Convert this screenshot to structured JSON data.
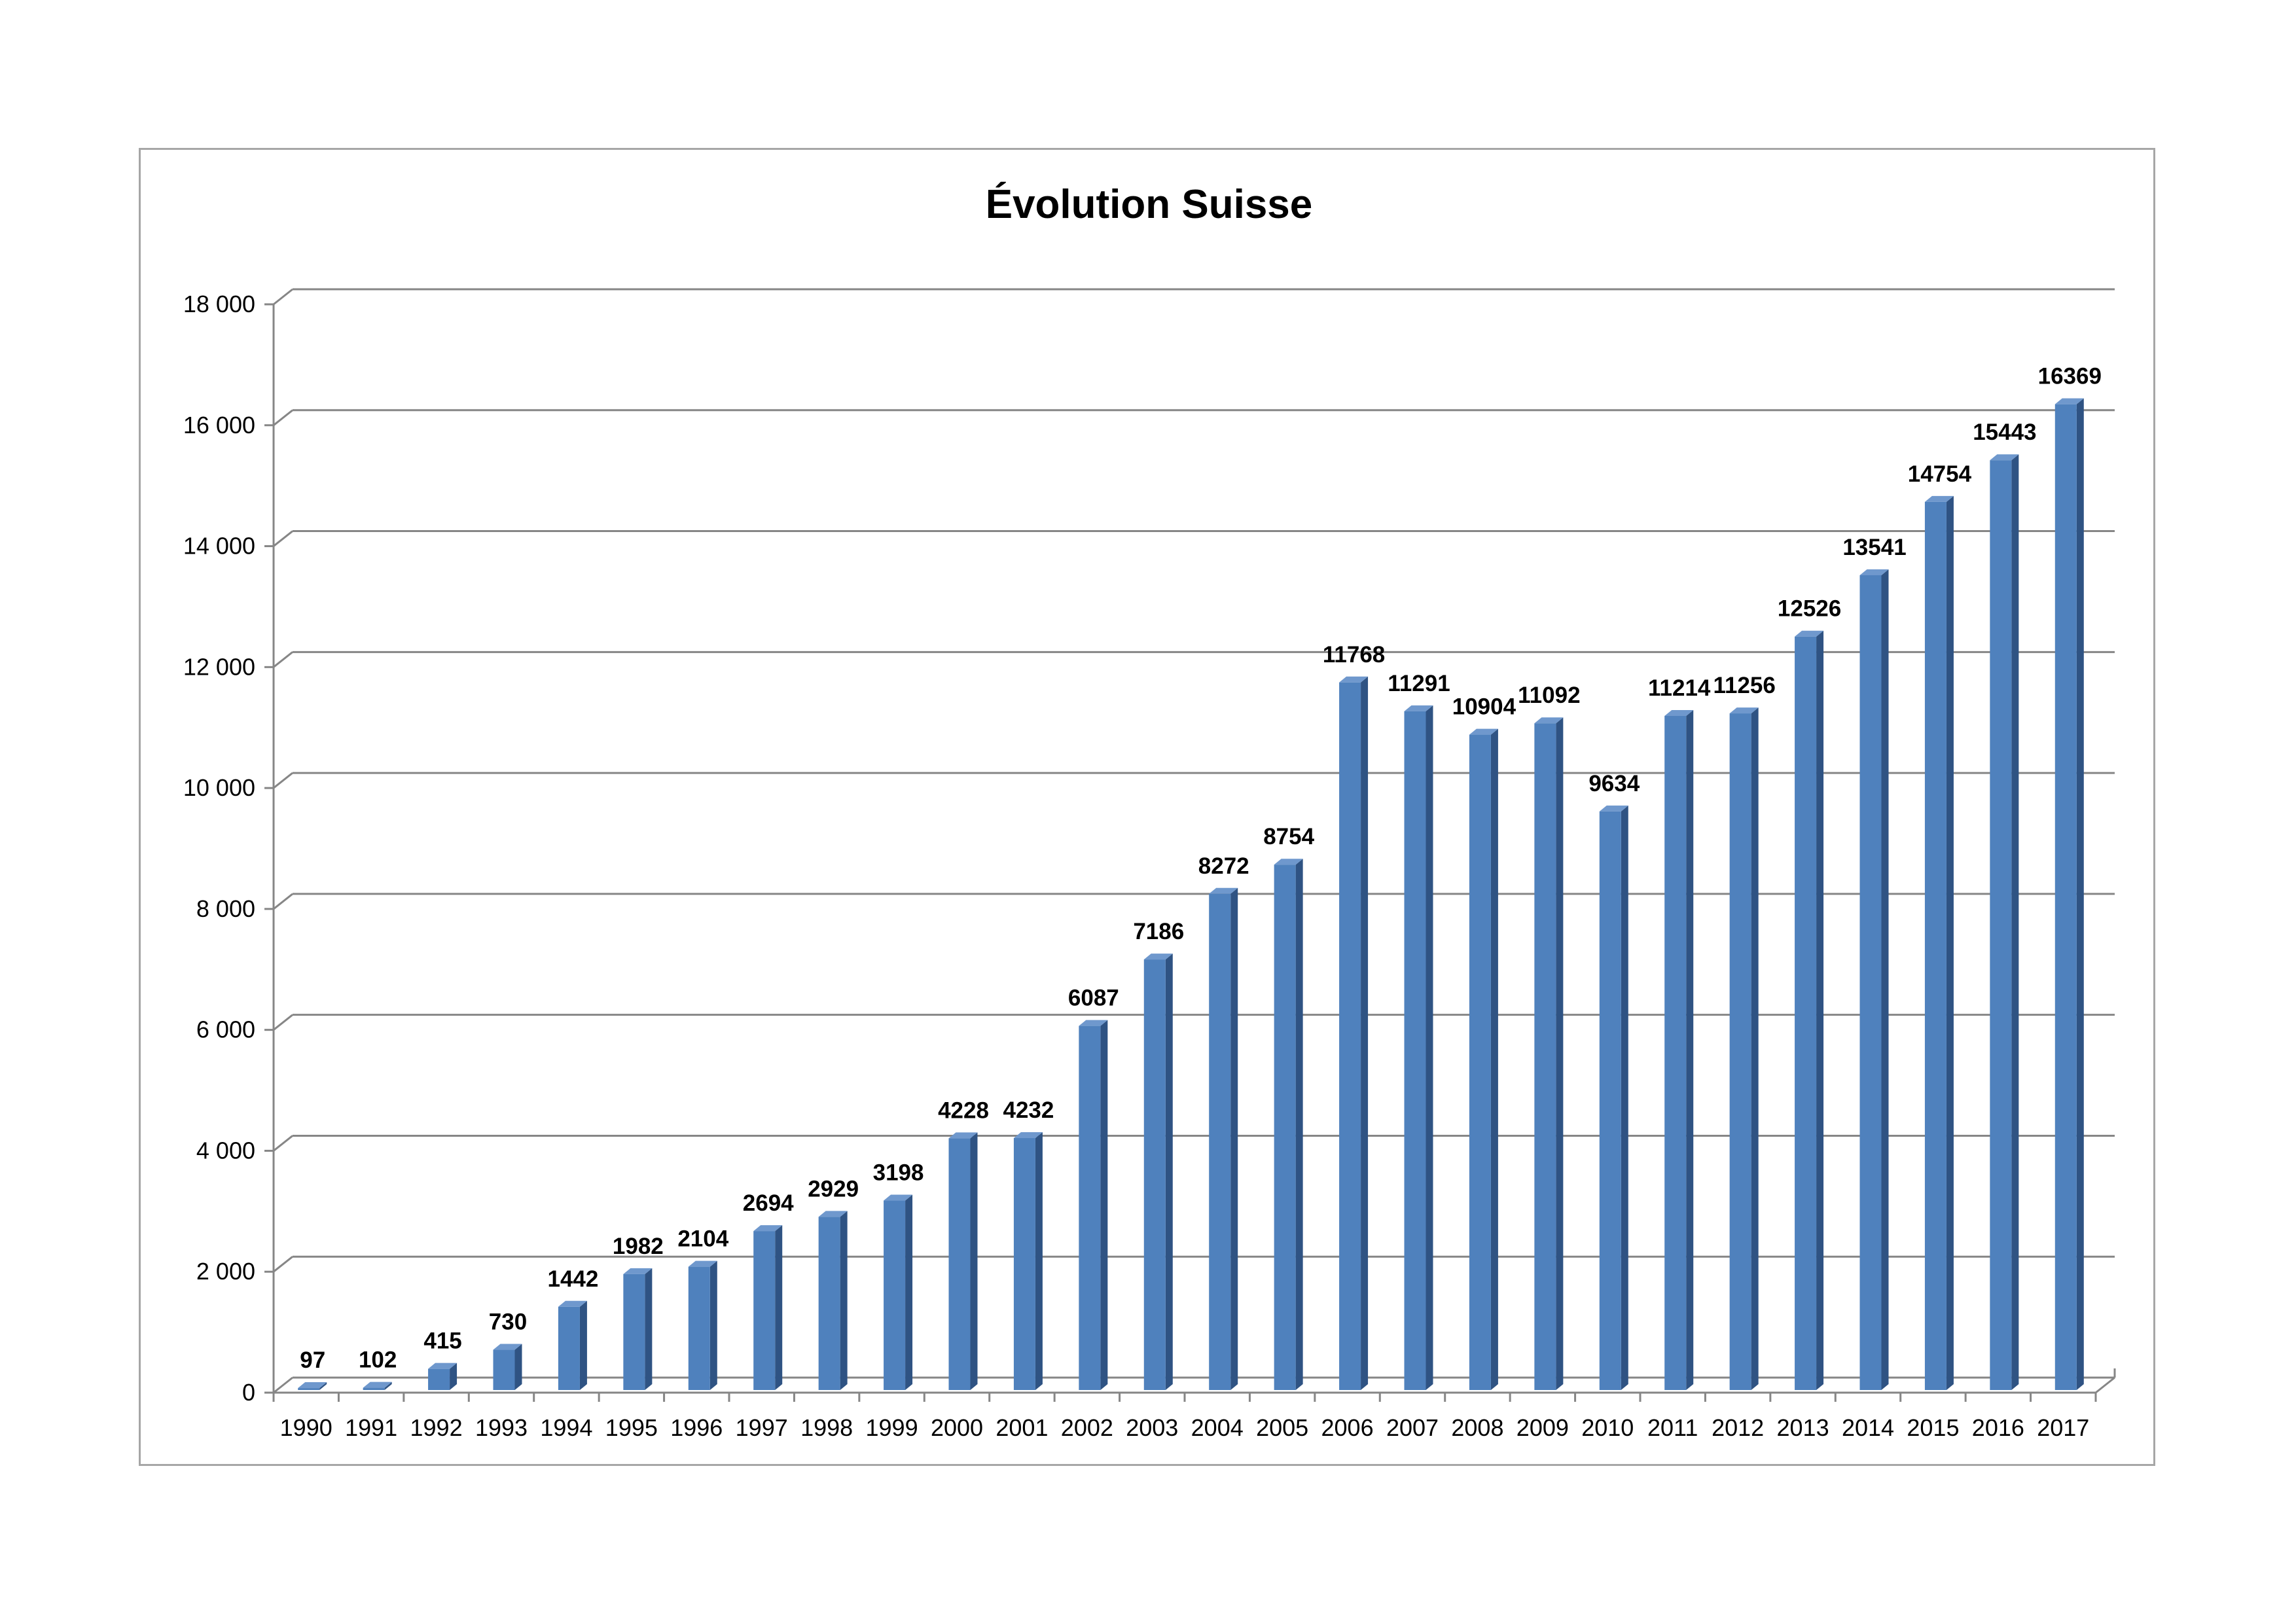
{
  "chart_data": {
    "type": "bar",
    "title": "Évolution Suisse",
    "xlabel": "",
    "ylabel": "",
    "categories": [
      "1990",
      "1991",
      "1992",
      "1993",
      "1994",
      "1995",
      "1996",
      "1997",
      "1998",
      "1999",
      "2000",
      "2001",
      "2002",
      "2003",
      "2004",
      "2005",
      "2006",
      "2007",
      "2008",
      "2009",
      "2010",
      "2011",
      "2012",
      "2013",
      "2014",
      "2015",
      "2016",
      "2017"
    ],
    "series": [
      {
        "values": [
          97,
          102,
          415,
          730,
          1442,
          1982,
          2104,
          2694,
          2929,
          3198,
          4228,
          4232,
          6087,
          7186,
          8272,
          8754,
          11768,
          11291,
          10904,
          11092,
          9634,
          11214,
          11256,
          12526,
          13541,
          14754,
          15443,
          16369
        ]
      }
    ],
    "ylim": [
      0,
      18000
    ],
    "yticks": [
      0,
      2000,
      4000,
      6000,
      8000,
      10000,
      12000,
      14000,
      16000,
      18000
    ],
    "ytick_labels": [
      "0",
      "2 000",
      "4 000",
      "6 000",
      "8 000",
      "10 000",
      "12 000",
      "14 000",
      "16 000",
      "18 000"
    ],
    "data_labels": [
      "97",
      "102",
      "415",
      "730",
      "1442",
      "1982",
      "2104",
      "2694",
      "2929",
      "3198",
      "4228",
      "4232",
      "6087",
      "7186",
      "8272",
      "8754",
      "11768",
      "11291",
      "10904",
      "11092",
      "9634",
      "11214",
      "11256",
      "12526",
      "13541",
      "14754",
      "15443",
      "16369"
    ],
    "grid": true,
    "style": "3d-column",
    "bar_color": "#4f81bd",
    "bar_side_color": "#2f5383",
    "bar_top_color": "#6f98cd",
    "grid_color": "#868686"
  }
}
